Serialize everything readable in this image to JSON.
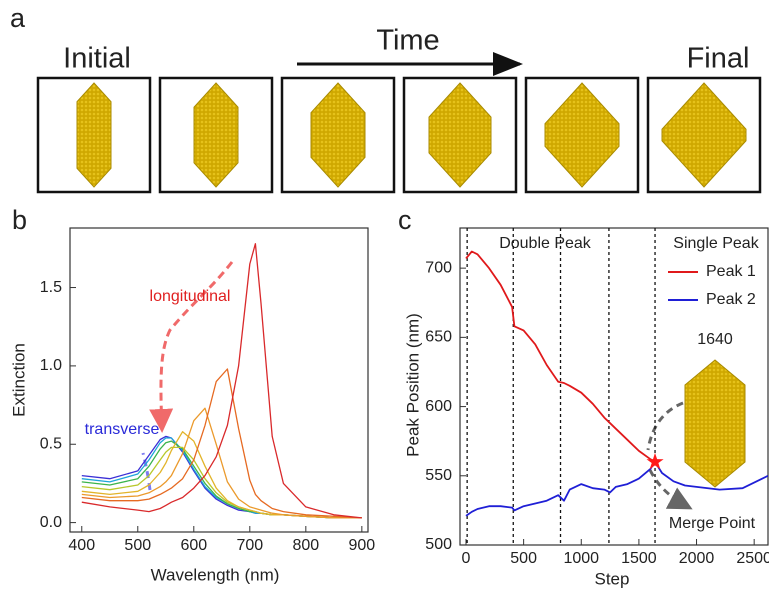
{
  "panel_a": {
    "label": "a",
    "initial": "Initial",
    "time": "Time",
    "final": "Final"
  },
  "chart_data": [
    {
      "type": "line",
      "panel_label": "b",
      "x_label": "Wavelength (nm)",
      "y_label": "Extinction",
      "annotations": [
        "longitudinal",
        "transverse"
      ],
      "x": [
        400,
        450,
        500,
        520,
        540,
        550,
        560,
        580,
        600,
        620,
        640,
        660,
        680,
        700,
        710,
        720,
        740,
        760,
        800,
        850,
        900
      ],
      "series": [
        {
          "color": "#3b2fd6",
          "values": [
            0.3,
            0.28,
            0.33,
            0.43,
            0.53,
            0.55,
            0.54,
            0.45,
            0.33,
            0.22,
            0.15,
            0.11,
            0.08,
            0.07,
            0.06,
            0.06,
            0.05,
            0.05,
            0.04,
            0.03,
            0.03
          ]
        },
        {
          "color": "#1fa6d8",
          "values": [
            0.28,
            0.26,
            0.31,
            0.4,
            0.51,
            0.54,
            0.54,
            0.46,
            0.34,
            0.23,
            0.16,
            0.12,
            0.09,
            0.07,
            0.06,
            0.06,
            0.05,
            0.05,
            0.04,
            0.03,
            0.03
          ]
        },
        {
          "color": "#3cb44b",
          "values": [
            0.26,
            0.24,
            0.28,
            0.36,
            0.47,
            0.51,
            0.52,
            0.47,
            0.36,
            0.25,
            0.17,
            0.12,
            0.09,
            0.07,
            0.07,
            0.06,
            0.05,
            0.05,
            0.04,
            0.03,
            0.03
          ]
        },
        {
          "color": "#b8c82a",
          "values": [
            0.23,
            0.21,
            0.24,
            0.3,
            0.4,
            0.45,
            0.48,
            0.48,
            0.4,
            0.28,
            0.19,
            0.13,
            0.1,
            0.08,
            0.07,
            0.06,
            0.05,
            0.05,
            0.04,
            0.03,
            0.03
          ]
        },
        {
          "color": "#e2b42a",
          "values": [
            0.2,
            0.18,
            0.2,
            0.24,
            0.32,
            0.38,
            0.46,
            0.58,
            0.52,
            0.36,
            0.22,
            0.14,
            0.1,
            0.08,
            0.07,
            0.06,
            0.05,
            0.05,
            0.04,
            0.03,
            0.03
          ]
        },
        {
          "color": "#eb9a2c",
          "values": [
            0.18,
            0.16,
            0.17,
            0.19,
            0.23,
            0.26,
            0.3,
            0.44,
            0.65,
            0.73,
            0.5,
            0.26,
            0.15,
            0.1,
            0.09,
            0.08,
            0.06,
            0.05,
            0.04,
            0.03,
            0.03
          ]
        },
        {
          "color": "#e66a22",
          "values": [
            0.16,
            0.14,
            0.14,
            0.15,
            0.18,
            0.2,
            0.22,
            0.28,
            0.4,
            0.62,
            0.9,
            0.98,
            0.6,
            0.27,
            0.18,
            0.14,
            0.09,
            0.07,
            0.05,
            0.04,
            0.03
          ]
        },
        {
          "color": "#d9292b",
          "values": [
            0.13,
            0.1,
            0.08,
            0.07,
            0.09,
            0.11,
            0.13,
            0.16,
            0.22,
            0.3,
            0.42,
            0.62,
            1.0,
            1.65,
            1.78,
            1.4,
            0.55,
            0.25,
            0.1,
            0.05,
            0.03
          ]
        }
      ],
      "xlim": [
        379,
        911
      ],
      "xticks": [
        400,
        500,
        600,
        700,
        800,
        900
      ],
      "ylim": [
        -0.06,
        1.88
      ],
      "yticks": [
        {
          "value": 0,
          "label": "0.0"
        },
        0.5,
        {
          "value": 1,
          "label": "1.0"
        },
        1.5
      ],
      "grid": false
    },
    {
      "type": "line",
      "panel_label": "c",
      "x_label": "Step",
      "y_label": "Peak Position (nm)",
      "annotations": [
        "Double Peak",
        "Single Peak",
        "Merge Point"
      ],
      "inset_step": 1640,
      "x": [
        0,
        50,
        100,
        200,
        300,
        400,
        420,
        500,
        600,
        700,
        800,
        850,
        900,
        1000,
        1100,
        1200,
        1250,
        1300,
        1400,
        1500,
        1600,
        1640,
        1700,
        1800,
        1900,
        2000,
        2200,
        2400,
        2620
      ],
      "series": [
        {
          "name": "Peak 1",
          "color": "#e0191b",
          "values": [
            707,
            712,
            710,
            700,
            688,
            672,
            658,
            655,
            645,
            630,
            618,
            617,
            615,
            610,
            602,
            592,
            588,
            584,
            576,
            568,
            562,
            560,
            null,
            null,
            null,
            null,
            null,
            null,
            null
          ]
        },
        {
          "name": "Peak 2",
          "color": "#1f1fd6",
          "values": [
            521,
            524,
            526,
            528,
            528,
            527,
            525,
            528,
            530,
            532,
            536,
            532,
            540,
            544,
            541,
            540,
            538,
            542,
            544,
            548,
            555,
            560,
            552,
            546,
            543,
            542,
            540,
            541,
            550
          ]
        }
      ],
      "vlines": [
        10,
        410,
        820,
        1240,
        1640
      ],
      "merge_point": [
        1640,
        560
      ],
      "xlim": [
        -52,
        2620
      ],
      "xticks": [
        0,
        500,
        1000,
        1500,
        2000,
        2500
      ],
      "ylim": [
        500,
        729
      ],
      "yticks": [
        500,
        550,
        600,
        650,
        700
      ],
      "legend": "upper right",
      "grid": false
    }
  ]
}
